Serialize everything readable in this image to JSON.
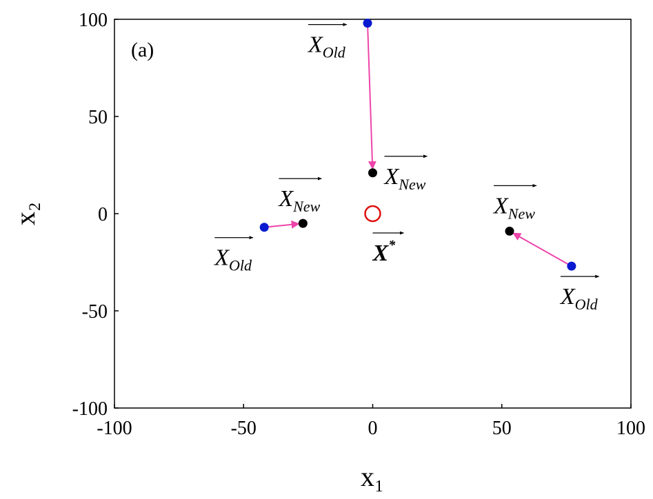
{
  "chart_data": {
    "type": "scatter",
    "panel_label": "(a)",
    "xlabel": "x₁",
    "ylabel": "x₂",
    "xlim": [
      -100,
      100
    ],
    "ylim": [
      -100,
      100
    ],
    "xticks": [
      -100,
      -50,
      0,
      50,
      100
    ],
    "yticks": [
      -100,
      -50,
      0,
      50,
      100
    ],
    "grid": false,
    "series": [
      {
        "color": "#0a1ad0",
        "marker": "filled",
        "point_label": "X",
        "point_label_sub": "Old",
        "x": [
          -42,
          -2,
          77
        ],
        "values": [
          -7,
          98,
          -27
        ]
      },
      {
        "color": "#000000",
        "marker": "filled",
        "point_label": "X",
        "point_label_sub": "New",
        "x": [
          -27,
          0,
          53
        ],
        "values": [
          -5,
          21,
          -9
        ]
      },
      {
        "color": "#e01010",
        "marker": "open",
        "point_label": "X",
        "point_label_sup": "*",
        "x": [
          0
        ],
        "values": [
          0
        ]
      }
    ],
    "arrow_color": "#ee44aa"
  }
}
